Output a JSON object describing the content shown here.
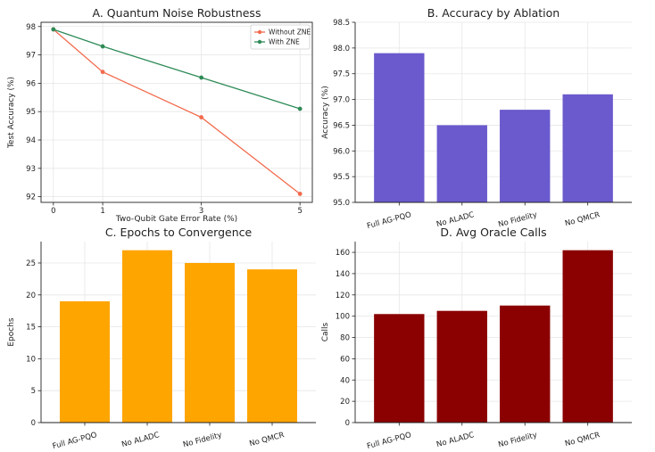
{
  "chart_data": [
    {
      "id": "a",
      "type": "line",
      "title": "A. Quantum Noise Robustness",
      "xlabel": "Two-Qubit Gate Error Rate (%)",
      "ylabel": "Test Accuracy (%)",
      "x": [
        0,
        1,
        3,
        5
      ],
      "xticks": [
        0,
        1,
        3,
        5
      ],
      "yticks": [
        92,
        93,
        94,
        95,
        96,
        97,
        98
      ],
      "xlim": [
        -0.25,
        5.25
      ],
      "ylim": [
        91.8,
        98.15
      ],
      "grid": true,
      "legend_position": "top-right",
      "series": [
        {
          "name": "Without ZNE",
          "values": [
            97.9,
            96.4,
            94.8,
            92.1
          ],
          "color": "#f26b4d"
        },
        {
          "name": "With ZNE",
          "values": [
            97.9,
            97.3,
            96.2,
            95.1
          ],
          "color": "#2e8b57"
        }
      ]
    },
    {
      "id": "b",
      "type": "bar",
      "title": "B. Accuracy by Ablation",
      "xlabel": "",
      "ylabel": "Accuracy (%)",
      "categories": [
        "Full AG-PQO",
        "No ALADC",
        "No Fidelity",
        "No QMCR"
      ],
      "values": [
        97.9,
        96.5,
        96.8,
        97.1
      ],
      "yticks": [
        95.0,
        95.5,
        96.0,
        96.5,
        97.0,
        97.5,
        98.0,
        98.5
      ],
      "tick_decimals": 1,
      "ylim": [
        95.0,
        98.5
      ],
      "grid": true,
      "color": "#6a5acd"
    },
    {
      "id": "c",
      "type": "bar",
      "title": "C. Epochs to Convergence",
      "xlabel": "",
      "ylabel": "Epochs",
      "categories": [
        "Full AG-PQO",
        "No ALADC",
        "No Fidelity",
        "No QMCR"
      ],
      "values": [
        19,
        27,
        25,
        24
      ],
      "yticks": [
        0,
        5,
        10,
        15,
        20,
        25
      ],
      "tick_decimals": 0,
      "ylim": [
        0,
        28.35
      ],
      "grid": true,
      "color": "#ffa500"
    },
    {
      "id": "d",
      "type": "bar",
      "title": "D. Avg Oracle Calls",
      "xlabel": "",
      "ylabel": "Calls",
      "categories": [
        "Full AG-PQO",
        "No ALADC",
        "No Fidelity",
        "No QMCR"
      ],
      "values": [
        102,
        105,
        110,
        162
      ],
      "yticks": [
        0,
        20,
        40,
        60,
        80,
        100,
        120,
        140,
        160
      ],
      "tick_decimals": 0,
      "ylim": [
        0,
        170.1
      ],
      "grid": true,
      "color": "#8b0000"
    }
  ]
}
